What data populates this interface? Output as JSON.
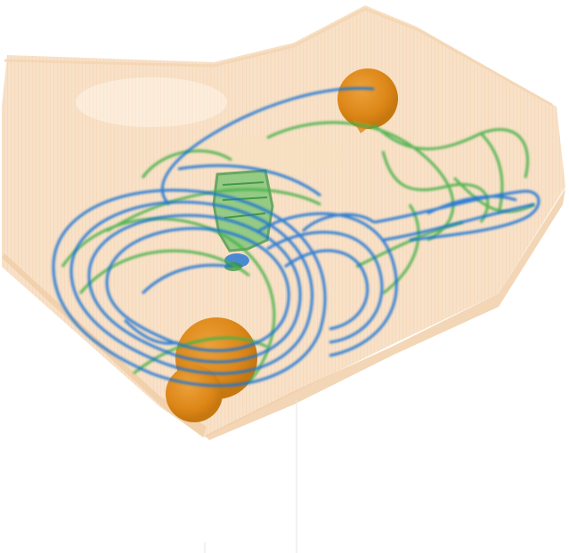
{
  "image": {
    "kind": "xray-baggage-scan",
    "colors": {
      "organic": "#f2c896",
      "organic_dense": "#e7a86d",
      "dense_orange": "#e3901f",
      "green": "#47b14c",
      "blue": "#1f74d6",
      "background": "#ffffff"
    }
  }
}
